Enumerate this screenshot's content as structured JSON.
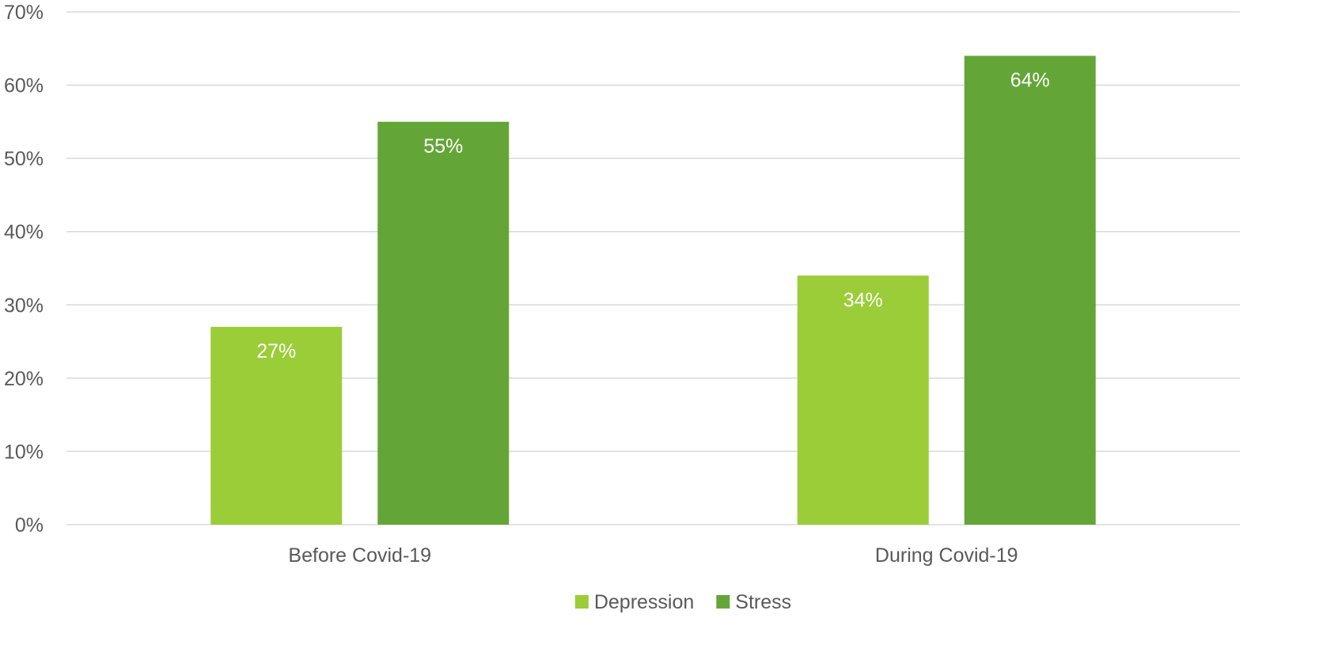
{
  "chart_data": {
    "type": "bar",
    "categories": [
      "Before Covid-19",
      "During Covid-19"
    ],
    "series": [
      {
        "name": "Depression",
        "values": [
          27,
          34
        ],
        "labels": [
          "27%",
          "34%"
        ],
        "color": "#9ACD38"
      },
      {
        "name": "Stress",
        "values": [
          55,
          64
        ],
        "labels": [
          "55%",
          "64%"
        ],
        "color": "#63A637"
      }
    ],
    "title": "",
    "xlabel": "",
    "ylabel": "",
    "ylim": [
      0,
      70
    ],
    "yticks": [
      0,
      10,
      20,
      30,
      40,
      50,
      60,
      70
    ],
    "ytick_labels": [
      "0%",
      "10%",
      "20%",
      "30%",
      "40%",
      "50%",
      "60%",
      "70%"
    ],
    "grid": true,
    "legend_position": "bottom-center",
    "data_label_position": "inside-top"
  },
  "colors": {
    "grid": "#d9d9d9",
    "axis_text": "#595959",
    "data_label_text": "#ffffff"
  }
}
